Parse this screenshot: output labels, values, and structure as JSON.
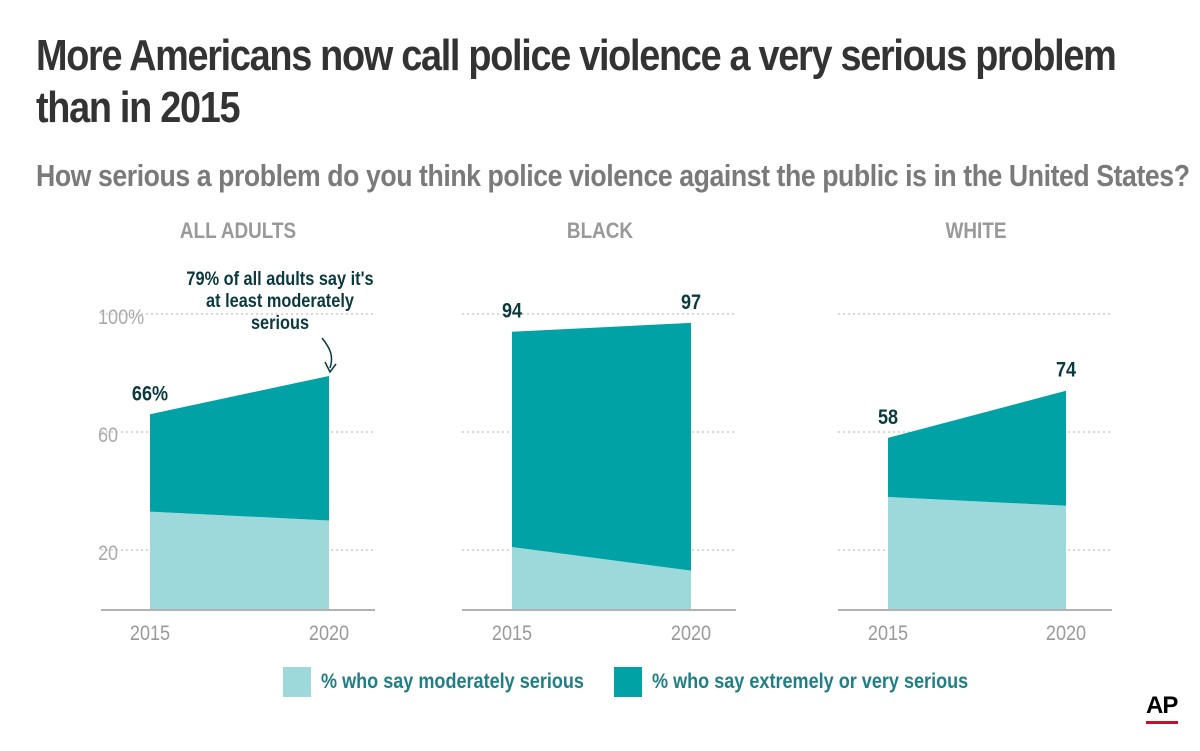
{
  "title_lines": [
    "More Americans now call police violence a very serious problem",
    "than in 2015"
  ],
  "subtitle": "How serious a problem do you think police violence against the public is in the United States?",
  "colors": {
    "moderate": "#9dd9da",
    "extreme": "#00a2a5",
    "label_dark": "#0b3940",
    "axis_gray": "#aaaaaa",
    "legend_text": "#1f7f84"
  },
  "legend": {
    "moderate": "% who say moderately serious",
    "extreme": "% who say extremely or very serious"
  },
  "logo": "AP",
  "chart_data": [
    {
      "type": "area",
      "title": "ALL ADULTS",
      "x": [
        "2015",
        "2020"
      ],
      "series": [
        {
          "name": "% who say moderately serious",
          "values": [
            33,
            30
          ]
        },
        {
          "name": "% who say extremely or very serious",
          "values": [
            33,
            49
          ]
        }
      ],
      "ylim": [
        0,
        100
      ],
      "yticks": [
        20,
        60,
        100
      ],
      "ytick_labels": [
        "20",
        "60",
        "100%"
      ],
      "total_labels": [
        "66%",
        ""
      ],
      "annotation": [
        "79% of all adults say it's",
        "at least moderately",
        "serious"
      ],
      "grid": true
    },
    {
      "type": "area",
      "title": "BLACK",
      "x": [
        "2015",
        "2020"
      ],
      "series": [
        {
          "name": "% who say moderately serious",
          "values": [
            21,
            13
          ]
        },
        {
          "name": "% who say extremely or very serious",
          "values": [
            73,
            84
          ]
        }
      ],
      "ylim": [
        0,
        100
      ],
      "total_labels": [
        "94",
        "97"
      ],
      "grid": true
    },
    {
      "type": "area",
      "title": "WHITE",
      "x": [
        "2015",
        "2020"
      ],
      "series": [
        {
          "name": "% who say moderately serious",
          "values": [
            38,
            35
          ]
        },
        {
          "name": "% who say extremely or very serious",
          "values": [
            20,
            39
          ]
        }
      ],
      "ylim": [
        0,
        100
      ],
      "total_labels": [
        "58",
        "74"
      ],
      "grid": true
    }
  ]
}
